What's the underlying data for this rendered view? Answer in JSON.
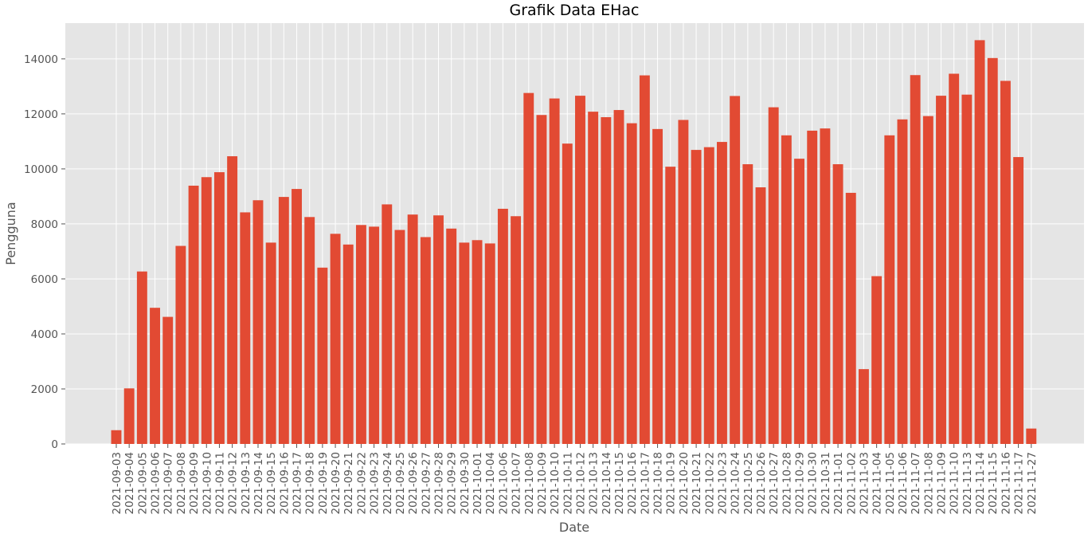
{
  "chart_data": {
    "type": "bar",
    "title": "Grafik Data EHac",
    "xlabel": "Date",
    "ylabel": "Pengguna",
    "ylim": [
      0,
      15300
    ],
    "yticks": [
      0,
      2000,
      4000,
      6000,
      8000,
      10000,
      12000,
      14000
    ],
    "grid": true,
    "legend": "none",
    "colors": {
      "bar": "#E24A33",
      "plot_bg": "#E5E5E5",
      "grid": "#FFFFFF",
      "tick_text": "#555555"
    },
    "categories": [
      "2021-09-03",
      "2021-09-04",
      "2021-09-05",
      "2021-09-06",
      "2021-09-07",
      "2021-09-08",
      "2021-09-09",
      "2021-09-10",
      "2021-09-11",
      "2021-09-12",
      "2021-09-13",
      "2021-09-14",
      "2021-09-15",
      "2021-09-16",
      "2021-09-17",
      "2021-09-18",
      "2021-09-19",
      "2021-09-20",
      "2021-09-21",
      "2021-09-22",
      "2021-09-23",
      "2021-09-24",
      "2021-09-25",
      "2021-09-26",
      "2021-09-27",
      "2021-09-28",
      "2021-09-29",
      "2021-09-30",
      "2021-10-01",
      "2021-10-04",
      "2021-10-06",
      "2021-10-07",
      "2021-10-08",
      "2021-10-09",
      "2021-10-10",
      "2021-10-11",
      "2021-10-12",
      "2021-10-13",
      "2021-10-14",
      "2021-10-15",
      "2021-10-16",
      "2021-10-17",
      "2021-10-18",
      "2021-10-19",
      "2021-10-20",
      "2021-10-21",
      "2021-10-22",
      "2021-10-23",
      "2021-10-24",
      "2021-10-25",
      "2021-10-26",
      "2021-10-27",
      "2021-10-28",
      "2021-10-29",
      "2021-10-30",
      "2021-10-31",
      "2021-11-01",
      "2021-11-02",
      "2021-11-03",
      "2021-11-04",
      "2021-11-05",
      "2021-11-06",
      "2021-11-07",
      "2021-11-08",
      "2021-11-09",
      "2021-11-10",
      "2021-11-13",
      "2021-11-14",
      "2021-11-15",
      "2021-11-16",
      "2021-11-17",
      "2021-11-27"
    ],
    "values": [
      500,
      2020,
      6270,
      4950,
      4620,
      7200,
      9390,
      9700,
      9880,
      10460,
      8420,
      8860,
      7320,
      8980,
      9270,
      8250,
      6410,
      7640,
      7250,
      7960,
      7900,
      8710,
      7780,
      8340,
      7520,
      8310,
      7830,
      7320,
      7410,
      7290,
      8550,
      8280,
      12760,
      11960,
      12560,
      10920,
      12660,
      12080,
      11880,
      12140,
      11660,
      13400,
      11450,
      10080,
      11780,
      10690,
      10790,
      10980,
      12650,
      10170,
      9330,
      12240,
      11220,
      10370,
      11390,
      11470,
      10170,
      9130,
      2720,
      6100,
      11220,
      11800,
      13410,
      11920,
      12660,
      13460,
      12700,
      14680,
      14030,
      13200,
      10430,
      560
    ]
  }
}
